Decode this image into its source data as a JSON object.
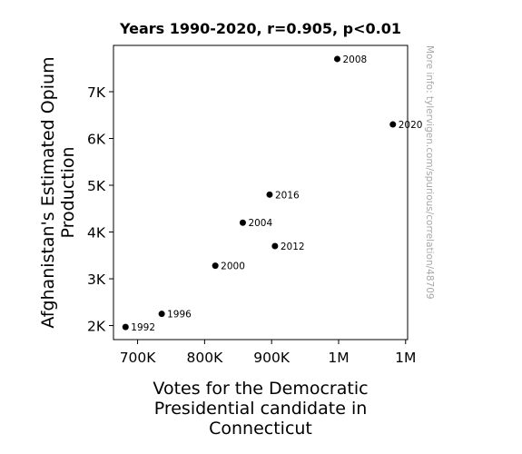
{
  "chart_data": {
    "type": "scatter",
    "title": "Years 1990-2020, r=0.905, p<0.01",
    "xlabel": [
      "Votes for the Democratic",
      "Presidential candidate in",
      "Connecticut"
    ],
    "ylabel": [
      "Afghanistan's Estimated Opium",
      "Production"
    ],
    "xlim": [
      664000,
      1103000
    ],
    "ylim": [
      1700,
      7990
    ],
    "x_ticks": [
      {
        "value": 700000,
        "label": "700K"
      },
      {
        "value": 800000,
        "label": "800K"
      },
      {
        "value": 900000,
        "label": "900K"
      },
      {
        "value": 1000000,
        "label": "1M"
      },
      {
        "value": 1100000,
        "label": "1M"
      }
    ],
    "y_ticks": [
      {
        "value": 2000,
        "label": "2K"
      },
      {
        "value": 3000,
        "label": "3K"
      },
      {
        "value": 4000,
        "label": "4K"
      },
      {
        "value": 5000,
        "label": "5K"
      },
      {
        "value": 6000,
        "label": "6K"
      },
      {
        "value": 7000,
        "label": "7K"
      }
    ],
    "points": [
      {
        "label": "1992",
        "x": 682000,
        "y": 1970
      },
      {
        "label": "1996",
        "x": 736000,
        "y": 2250
      },
      {
        "label": "2000",
        "x": 816000,
        "y": 3280
      },
      {
        "label": "2004",
        "x": 857000,
        "y": 4200
      },
      {
        "label": "2008",
        "x": 998000,
        "y": 7700
      },
      {
        "label": "2012",
        "x": 905000,
        "y": 3700
      },
      {
        "label": "2016",
        "x": 897000,
        "y": 4800
      },
      {
        "label": "2020",
        "x": 1081000,
        "y": 6300
      }
    ],
    "grid": false,
    "marker_color": "#000000"
  },
  "watermark": "More info: tylervigen.com/spurious/correlation/48709"
}
